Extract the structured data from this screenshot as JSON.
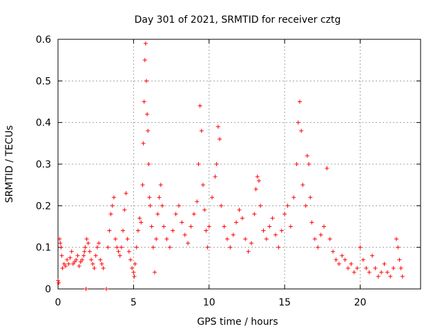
{
  "chart_data": {
    "type": "scatter",
    "title": "Day 301 of 2021, SRMTID for receiver cztg",
    "xlabel": "GPS time / hours",
    "ylabel": "SRMTID / TECUs",
    "xlim": [
      0,
      24
    ],
    "ylim": [
      0,
      0.6
    ],
    "x_ticks": [
      0,
      5,
      10,
      15,
      20
    ],
    "y_ticks": [
      0,
      0.1,
      0.2,
      0.3,
      0.4,
      0.5,
      0.6
    ],
    "x_tick_labels": [
      "0",
      "5",
      "10",
      "15",
      "20"
    ],
    "y_tick_labels": [
      "0",
      "0.1",
      "0.2",
      "0.3",
      "0.4",
      "0.5",
      "0.6"
    ],
    "grid": true,
    "marker": "+",
    "color": "#ff0000",
    "series": [
      {
        "name": "SRMTID",
        "points": [
          [
            0.0,
            0.02
          ],
          [
            0.05,
            0.015
          ],
          [
            0.1,
            0.12
          ],
          [
            0.15,
            0.11
          ],
          [
            0.2,
            0.1
          ],
          [
            0.25,
            0.08
          ],
          [
            0.3,
            0.05
          ],
          [
            0.4,
            0.06
          ],
          [
            0.5,
            0.055
          ],
          [
            0.6,
            0.07
          ],
          [
            0.7,
            0.06
          ],
          [
            0.8,
            0.075
          ],
          [
            0.9,
            0.09
          ],
          [
            1.0,
            0.06
          ],
          [
            1.1,
            0.065
          ],
          [
            1.2,
            0.07
          ],
          [
            1.3,
            0.08
          ],
          [
            1.4,
            0.055
          ],
          [
            1.5,
            0.065
          ],
          [
            1.6,
            0.07
          ],
          [
            1.7,
            0.08
          ],
          [
            1.75,
            0.09
          ],
          [
            1.8,
            0.1
          ],
          [
            1.85,
            0.0
          ],
          [
            1.9,
            0.12
          ],
          [
            2.0,
            0.11
          ],
          [
            2.1,
            0.09
          ],
          [
            2.2,
            0.07
          ],
          [
            2.3,
            0.06
          ],
          [
            2.4,
            0.05
          ],
          [
            2.5,
            0.08
          ],
          [
            2.6,
            0.1
          ],
          [
            2.7,
            0.11
          ],
          [
            2.8,
            0.07
          ],
          [
            2.9,
            0.06
          ],
          [
            3.0,
            0.05
          ],
          [
            3.2,
            0.0
          ],
          [
            3.3,
            0.1
          ],
          [
            3.4,
            0.14
          ],
          [
            3.5,
            0.18
          ],
          [
            3.6,
            0.2
          ],
          [
            3.7,
            0.22
          ],
          [
            3.8,
            0.12
          ],
          [
            3.9,
            0.1
          ],
          [
            4.0,
            0.09
          ],
          [
            4.1,
            0.08
          ],
          [
            4.2,
            0.1
          ],
          [
            4.3,
            0.14
          ],
          [
            4.4,
            0.19
          ],
          [
            4.5,
            0.23
          ],
          [
            4.6,
            0.12
          ],
          [
            4.7,
            0.09
          ],
          [
            4.8,
            0.07
          ],
          [
            4.9,
            0.05
          ],
          [
            5.0,
            0.04
          ],
          [
            5.05,
            0.03
          ],
          [
            5.1,
            0.06
          ],
          [
            5.2,
            0.1
          ],
          [
            5.3,
            0.14
          ],
          [
            5.4,
            0.17
          ],
          [
            5.5,
            0.16
          ],
          [
            5.6,
            0.25
          ],
          [
            5.65,
            0.35
          ],
          [
            5.7,
            0.45
          ],
          [
            5.75,
            0.55
          ],
          [
            5.8,
            0.59
          ],
          [
            5.85,
            0.5
          ],
          [
            5.9,
            0.42
          ],
          [
            5.95,
            0.38
          ],
          [
            6.0,
            0.3
          ],
          [
            6.05,
            0.22
          ],
          [
            6.1,
            0.2
          ],
          [
            6.2,
            0.15
          ],
          [
            6.3,
            0.1
          ],
          [
            6.4,
            0.04
          ],
          [
            6.5,
            0.12
          ],
          [
            6.6,
            0.18
          ],
          [
            6.7,
            0.22
          ],
          [
            6.8,
            0.25
          ],
          [
            6.9,
            0.2
          ],
          [
            7.0,
            0.15
          ],
          [
            7.2,
            0.12
          ],
          [
            7.4,
            0.1
          ],
          [
            7.6,
            0.14
          ],
          [
            7.8,
            0.18
          ],
          [
            8.0,
            0.2
          ],
          [
            8.2,
            0.16
          ],
          [
            8.4,
            0.13
          ],
          [
            8.6,
            0.11
          ],
          [
            8.8,
            0.15
          ],
          [
            9.0,
            0.18
          ],
          [
            9.2,
            0.21
          ],
          [
            9.3,
            0.3
          ],
          [
            9.4,
            0.44
          ],
          [
            9.5,
            0.38
          ],
          [
            9.6,
            0.25
          ],
          [
            9.7,
            0.19
          ],
          [
            9.8,
            0.14
          ],
          [
            9.9,
            0.1
          ],
          [
            10.0,
            0.15
          ],
          [
            10.2,
            0.22
          ],
          [
            10.4,
            0.27
          ],
          [
            10.5,
            0.3
          ],
          [
            10.6,
            0.39
          ],
          [
            10.7,
            0.36
          ],
          [
            10.8,
            0.2
          ],
          [
            11.0,
            0.15
          ],
          [
            11.2,
            0.12
          ],
          [
            11.4,
            0.1
          ],
          [
            11.6,
            0.13
          ],
          [
            11.8,
            0.16
          ],
          [
            12.0,
            0.19
          ],
          [
            12.2,
            0.17
          ],
          [
            12.4,
            0.12
          ],
          [
            12.6,
            0.09
          ],
          [
            12.8,
            0.11
          ],
          [
            13.0,
            0.18
          ],
          [
            13.1,
            0.24
          ],
          [
            13.2,
            0.27
          ],
          [
            13.3,
            0.26
          ],
          [
            13.4,
            0.2
          ],
          [
            13.6,
            0.14
          ],
          [
            13.8,
            0.12
          ],
          [
            14.0,
            0.15
          ],
          [
            14.2,
            0.17
          ],
          [
            14.4,
            0.13
          ],
          [
            14.6,
            0.1
          ],
          [
            14.8,
            0.14
          ],
          [
            15.0,
            0.18
          ],
          [
            15.2,
            0.2
          ],
          [
            15.4,
            0.15
          ],
          [
            15.6,
            0.22
          ],
          [
            15.8,
            0.3
          ],
          [
            15.9,
            0.4
          ],
          [
            16.0,
            0.45
          ],
          [
            16.1,
            0.38
          ],
          [
            16.2,
            0.25
          ],
          [
            16.4,
            0.2
          ],
          [
            16.5,
            0.32
          ],
          [
            16.6,
            0.3
          ],
          [
            16.7,
            0.22
          ],
          [
            16.8,
            0.16
          ],
          [
            17.0,
            0.12
          ],
          [
            17.2,
            0.1
          ],
          [
            17.4,
            0.13
          ],
          [
            17.6,
            0.15
          ],
          [
            17.8,
            0.29
          ],
          [
            18.0,
            0.12
          ],
          [
            18.2,
            0.09
          ],
          [
            18.4,
            0.07
          ],
          [
            18.6,
            0.06
          ],
          [
            18.8,
            0.08
          ],
          [
            19.0,
            0.07
          ],
          [
            19.2,
            0.05
          ],
          [
            19.4,
            0.06
          ],
          [
            19.6,
            0.04
          ],
          [
            19.8,
            0.05
          ],
          [
            20.0,
            0.1
          ],
          [
            20.2,
            0.07
          ],
          [
            20.4,
            0.05
          ],
          [
            20.6,
            0.04
          ],
          [
            20.8,
            0.08
          ],
          [
            21.0,
            0.05
          ],
          [
            21.2,
            0.03
          ],
          [
            21.4,
            0.04
          ],
          [
            21.6,
            0.06
          ],
          [
            21.8,
            0.04
          ],
          [
            22.0,
            0.03
          ],
          [
            22.2,
            0.05
          ],
          [
            22.4,
            0.12
          ],
          [
            22.5,
            0.1
          ],
          [
            22.6,
            0.07
          ],
          [
            22.7,
            0.05
          ],
          [
            22.8,
            0.03
          ]
        ]
      }
    ]
  }
}
